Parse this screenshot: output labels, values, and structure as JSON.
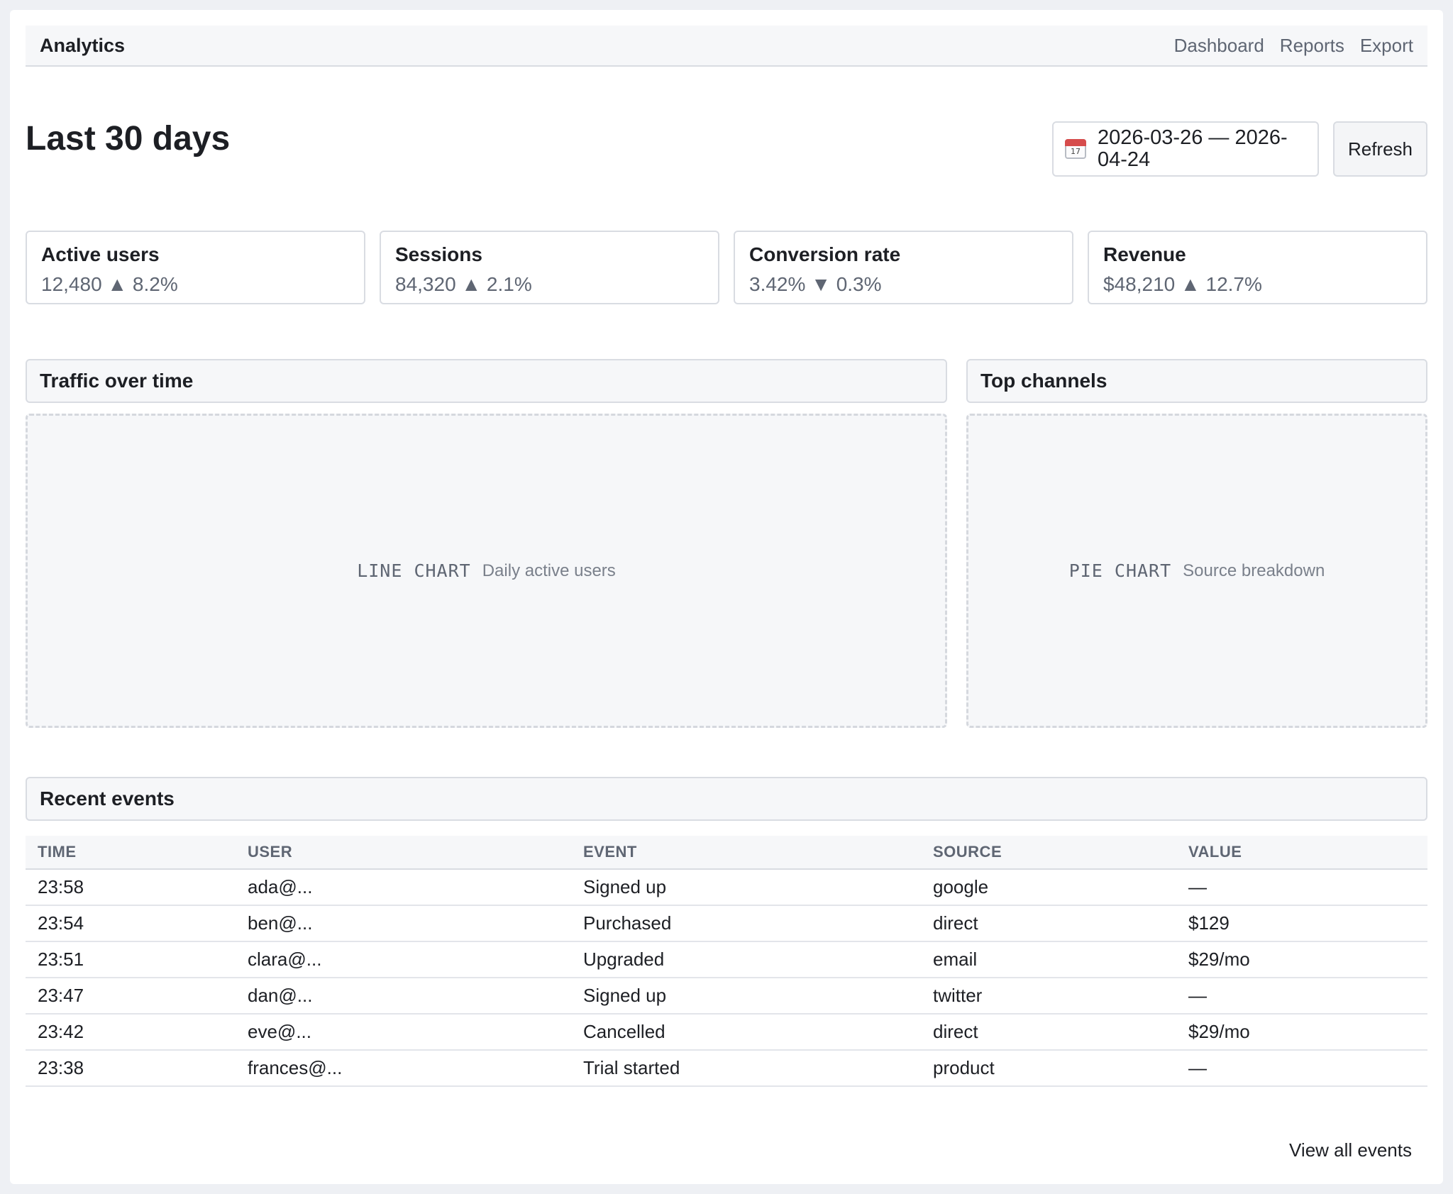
{
  "app": {
    "title": "Analytics"
  },
  "nav": {
    "items": [
      "Dashboard",
      "Reports",
      "Export"
    ]
  },
  "header": {
    "title": "Last 30 days",
    "date_range": "2026-03-26 — 2026-04-24",
    "calendar_day": "17",
    "refresh_label": "Refresh"
  },
  "kpis": [
    {
      "label": "Active users",
      "value": "12,480",
      "trend": "▲",
      "delta": "8.2%"
    },
    {
      "label": "Sessions",
      "value": "84,320",
      "trend": "▲",
      "delta": "2.1%"
    },
    {
      "label": "Conversion rate",
      "value": "3.42%",
      "trend": "▼",
      "delta": "0.3%"
    },
    {
      "label": "Revenue",
      "value": "$48,210",
      "trend": "▲",
      "delta": "12.7%"
    }
  ],
  "traffic": {
    "title": "Traffic over time",
    "placeholder_kind": "LINE CHART",
    "placeholder_desc": "Daily active users"
  },
  "channels": {
    "title": "Top channels",
    "placeholder_kind": "PIE CHART",
    "placeholder_desc": "Source breakdown"
  },
  "events": {
    "title": "Recent events",
    "columns": [
      "TIME",
      "USER",
      "EVENT",
      "SOURCE",
      "VALUE"
    ],
    "rows": [
      [
        "23:58",
        "ada@...",
        "Signed up",
        "google",
        "—"
      ],
      [
        "23:54",
        "ben@...",
        "Purchased",
        "direct",
        "$129"
      ],
      [
        "23:51",
        "clara@...",
        "Upgraded",
        "email",
        "$29/mo"
      ],
      [
        "23:47",
        "dan@...",
        "Signed up",
        "twitter",
        "—"
      ],
      [
        "23:42",
        "eve@...",
        "Cancelled",
        "direct",
        "$29/mo"
      ],
      [
        "23:38",
        "frances@...",
        "Trial started",
        "product",
        "—"
      ]
    ],
    "view_all_label": "View all events"
  },
  "icons": {
    "calendar": "calendar-icon"
  }
}
